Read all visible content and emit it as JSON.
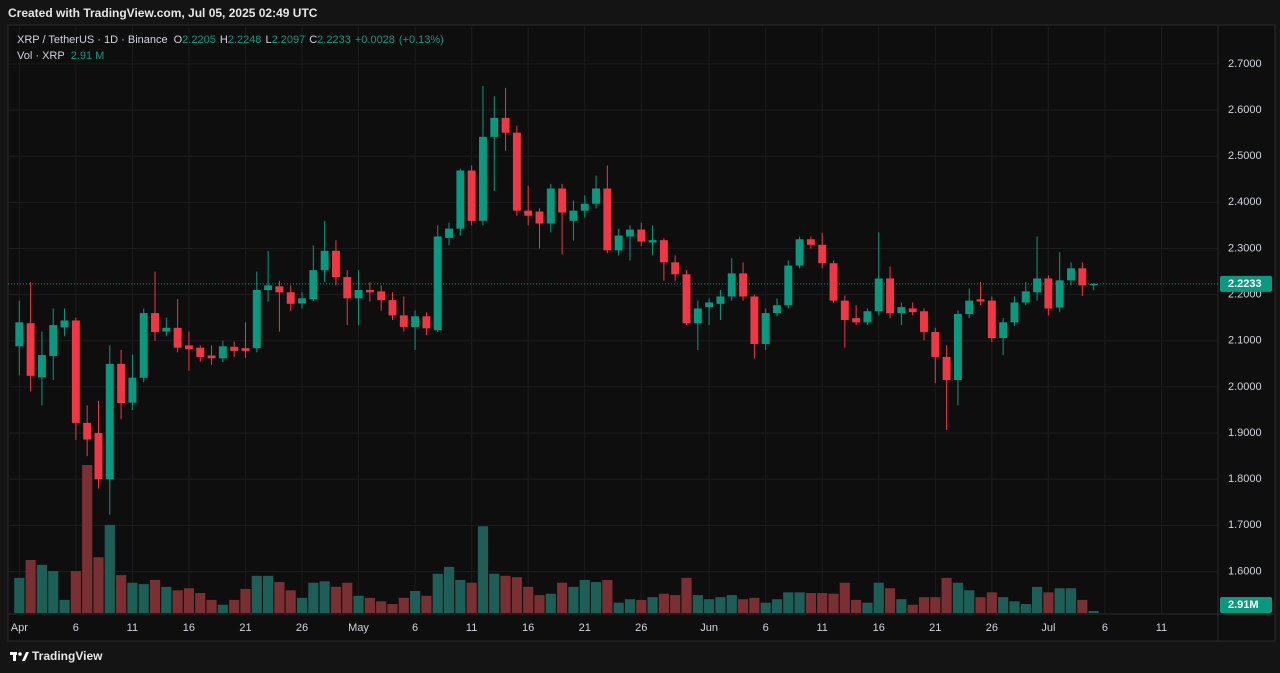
{
  "created_with": "Created with TradingView.com, Jul 05, 2025 02:49 UTC",
  "brand": "TradingView",
  "chart_data": {
    "type": "candlestick",
    "symbol": "XRP / TetherUS · 1D · Binance",
    "ohlc_prefixes": [
      "O",
      "H",
      "L",
      "C"
    ],
    "change": 0.0028,
    "change_label": "+0.0028",
    "change_pct": 0.13,
    "change_pct_label": "(+0.13%)",
    "volume_name": "Vol · XRP",
    "volume_legend_label": "2.91 M",
    "volume_tag_label": "2.91M",
    "up_color": "#089981",
    "down_color": "#f23645",
    "volume_up_color": "#1d5f57",
    "volume_down_color": "#7a2f33",
    "grid": true,
    "ylim": [
      1.51,
      2.78
    ],
    "yticks": [
      {
        "value": 1.6,
        "label": "1.6000"
      },
      {
        "value": 1.7,
        "label": "1.7000"
      },
      {
        "value": 1.8,
        "label": "1.8000"
      },
      {
        "value": 1.9,
        "label": "1.9000"
      },
      {
        "value": 2.0,
        "label": "2.0000"
      },
      {
        "value": 2.1,
        "label": "2.1000"
      },
      {
        "value": 2.2,
        "label": "2.2000"
      },
      {
        "value": 2.3,
        "label": "2.3000"
      },
      {
        "value": 2.4,
        "label": "2.4000"
      },
      {
        "value": 2.5,
        "label": "2.5000"
      },
      {
        "value": 2.6,
        "label": "2.6000"
      },
      {
        "value": 2.7,
        "label": "2.7000"
      }
    ],
    "xlim": [
      "2025-03-31",
      "2025-07-16"
    ],
    "xticks": [
      {
        "value": "2025-04-01",
        "label": "Apr"
      },
      {
        "value": "2025-04-06",
        "label": "6"
      },
      {
        "value": "2025-04-11",
        "label": "11"
      },
      {
        "value": "2025-04-16",
        "label": "16"
      },
      {
        "value": "2025-04-21",
        "label": "21"
      },
      {
        "value": "2025-04-26",
        "label": "26"
      },
      {
        "value": "2025-05-01",
        "label": "May"
      },
      {
        "value": "2025-05-06",
        "label": "6"
      },
      {
        "value": "2025-05-11",
        "label": "11"
      },
      {
        "value": "2025-05-16",
        "label": "16"
      },
      {
        "value": "2025-05-21",
        "label": "21"
      },
      {
        "value": "2025-05-26",
        "label": "26"
      },
      {
        "value": "2025-06-01",
        "label": "Jun"
      },
      {
        "value": "2025-06-06",
        "label": "6"
      },
      {
        "value": "2025-06-11",
        "label": "11"
      },
      {
        "value": "2025-06-16",
        "label": "16"
      },
      {
        "value": "2025-06-21",
        "label": "21"
      },
      {
        "value": "2025-06-26",
        "label": "26"
      },
      {
        "value": "2025-07-01",
        "label": "Jul"
      },
      {
        "value": "2025-07-06",
        "label": "6"
      },
      {
        "value": "2025-07-11",
        "label": "11"
      }
    ],
    "x": [
      "2025-04-01",
      "2025-04-02",
      "2025-04-03",
      "2025-04-04",
      "2025-04-05",
      "2025-04-06",
      "2025-04-07",
      "2025-04-08",
      "2025-04-09",
      "2025-04-10",
      "2025-04-11",
      "2025-04-12",
      "2025-04-13",
      "2025-04-14",
      "2025-04-15",
      "2025-04-16",
      "2025-04-17",
      "2025-04-18",
      "2025-04-19",
      "2025-04-20",
      "2025-04-21",
      "2025-04-22",
      "2025-04-23",
      "2025-04-24",
      "2025-04-25",
      "2025-04-26",
      "2025-04-27",
      "2025-04-28",
      "2025-04-29",
      "2025-04-30",
      "2025-05-01",
      "2025-05-02",
      "2025-05-03",
      "2025-05-04",
      "2025-05-05",
      "2025-05-06",
      "2025-05-07",
      "2025-05-08",
      "2025-05-09",
      "2025-05-10",
      "2025-05-11",
      "2025-05-12",
      "2025-05-13",
      "2025-05-14",
      "2025-05-15",
      "2025-05-16",
      "2025-05-17",
      "2025-05-18",
      "2025-05-19",
      "2025-05-20",
      "2025-05-21",
      "2025-05-22",
      "2025-05-23",
      "2025-05-24",
      "2025-05-25",
      "2025-05-26",
      "2025-05-27",
      "2025-05-28",
      "2025-05-29",
      "2025-05-30",
      "2025-05-31",
      "2025-06-01",
      "2025-06-02",
      "2025-06-03",
      "2025-06-04",
      "2025-06-05",
      "2025-06-06",
      "2025-06-07",
      "2025-06-08",
      "2025-06-09",
      "2025-06-10",
      "2025-06-11",
      "2025-06-12",
      "2025-06-13",
      "2025-06-14",
      "2025-06-15",
      "2025-06-16",
      "2025-06-17",
      "2025-06-18",
      "2025-06-19",
      "2025-06-20",
      "2025-06-21",
      "2025-06-22",
      "2025-06-23",
      "2025-06-24",
      "2025-06-25",
      "2025-06-26",
      "2025-06-27",
      "2025-06-28",
      "2025-06-29",
      "2025-06-30",
      "2025-07-01",
      "2025-07-02",
      "2025-07-03",
      "2025-07-04",
      "2025-07-05"
    ],
    "open": [
      2.088,
      2.138,
      2.021,
      2.067,
      2.129,
      2.144,
      1.922,
      1.9,
      1.8,
      2.05,
      1.966,
      2.02,
      2.16,
      2.12,
      2.128,
      2.09,
      2.085,
      2.068,
      2.062,
      2.087,
      2.084,
      2.084,
      2.21,
      2.218,
      2.205,
      2.181,
      2.19,
      2.253,
      2.295,
      2.238,
      2.192,
      2.21,
      2.207,
      2.188,
      2.155,
      2.13,
      2.153,
      2.123,
      2.323,
      2.343,
      2.469,
      2.36,
      2.542,
      2.583,
      2.551,
      2.382,
      2.38,
      2.354,
      2.43,
      2.36,
      2.382,
      2.397,
      2.43,
      2.296,
      2.326,
      2.341,
      2.313,
      2.318,
      2.27,
      2.244,
      2.138,
      2.173,
      2.18,
      2.196,
      2.246,
      2.196,
      2.093,
      2.16,
      2.177,
      2.263,
      2.32,
      2.308,
      2.268,
      2.187,
      2.149,
      2.14,
      2.164,
      2.235,
      2.16,
      2.17,
      2.164,
      2.119,
      2.065,
      2.015,
      2.158,
      2.19,
      2.187,
      2.106,
      2.14,
      2.183,
      2.205,
      2.235,
      2.172,
      2.231,
      2.257,
      2.2205
    ],
    "high": [
      2.187,
      2.227,
      2.12,
      2.17,
      2.17,
      2.15,
      1.96,
      1.97,
      2.09,
      2.08,
      2.07,
      2.17,
      2.25,
      2.15,
      2.19,
      2.12,
      2.09,
      2.09,
      2.1,
      2.098,
      2.14,
      2.25,
      2.295,
      2.23,
      2.22,
      2.206,
      2.307,
      2.36,
      2.318,
      2.253,
      2.253,
      2.227,
      2.22,
      2.205,
      2.196,
      2.166,
      2.162,
      2.35,
      2.356,
      2.473,
      2.48,
      2.652,
      2.63,
      2.648,
      2.566,
      2.436,
      2.387,
      2.44,
      2.44,
      2.404,
      2.415,
      2.458,
      2.48,
      2.343,
      2.35,
      2.356,
      2.35,
      2.322,
      2.285,
      2.253,
      2.187,
      2.192,
      2.21,
      2.279,
      2.27,
      2.2,
      2.17,
      2.192,
      2.274,
      2.326,
      2.326,
      2.334,
      2.274,
      2.198,
      2.177,
      2.17,
      2.335,
      2.261,
      2.183,
      2.183,
      2.17,
      2.128,
      2.09,
      2.166,
      2.213,
      2.227,
      2.196,
      2.149,
      2.196,
      2.227,
      2.326,
      2.242,
      2.292,
      2.27,
      2.27,
      2.2248
    ],
    "low": [
      2.025,
      1.99,
      1.96,
      2.015,
      2.11,
      1.885,
      1.85,
      1.78,
      1.723,
      1.93,
      1.95,
      2.01,
      2.1,
      2.11,
      2.075,
      2.035,
      2.055,
      2.048,
      2.054,
      2.065,
      2.063,
      2.075,
      2.185,
      2.12,
      2.165,
      2.17,
      2.186,
      2.227,
      2.22,
      2.134,
      2.134,
      2.185,
      2.165,
      2.145,
      2.12,
      2.08,
      2.112,
      2.119,
      2.307,
      2.328,
      2.35,
      2.35,
      2.425,
      2.512,
      2.371,
      2.35,
      2.3,
      2.335,
      2.287,
      2.317,
      2.367,
      2.387,
      2.29,
      2.285,
      2.274,
      2.305,
      2.285,
      2.23,
      2.23,
      2.134,
      2.08,
      2.134,
      2.145,
      2.187,
      2.187,
      2.062,
      2.08,
      2.153,
      2.17,
      2.257,
      2.3,
      2.257,
      2.183,
      2.085,
      2.134,
      2.134,
      2.155,
      2.149,
      2.134,
      2.155,
      2.101,
      2.008,
      1.907,
      1.96,
      2.149,
      2.177,
      2.097,
      2.069,
      2.132,
      2.177,
      2.187,
      2.155,
      2.162,
      2.22,
      2.197,
      2.2097
    ],
    "close": [
      2.14,
      2.024,
      2.069,
      2.134,
      2.144,
      1.922,
      1.886,
      1.8,
      2.05,
      1.965,
      2.02,
      2.16,
      2.119,
      2.128,
      2.085,
      2.082,
      2.065,
      2.062,
      2.088,
      2.078,
      2.078,
      2.21,
      2.22,
      2.205,
      2.18,
      2.192,
      2.253,
      2.295,
      2.238,
      2.192,
      2.21,
      2.205,
      2.188,
      2.155,
      2.13,
      2.153,
      2.127,
      2.326,
      2.343,
      2.469,
      2.36,
      2.542,
      2.583,
      2.551,
      2.382,
      2.371,
      2.354,
      2.43,
      2.378,
      2.382,
      2.397,
      2.43,
      2.296,
      2.328,
      2.341,
      2.315,
      2.318,
      2.27,
      2.244,
      2.138,
      2.17,
      2.183,
      2.196,
      2.246,
      2.196,
      2.093,
      2.16,
      2.177,
      2.263,
      2.32,
      2.308,
      2.268,
      2.187,
      2.145,
      2.14,
      2.164,
      2.235,
      2.16,
      2.173,
      2.162,
      2.119,
      2.065,
      2.015,
      2.158,
      2.187,
      2.185,
      2.106,
      2.14,
      2.183,
      2.207,
      2.235,
      2.17,
      2.231,
      2.257,
      2.22,
      2.2233
    ],
    "volume": [
      51,
      77,
      70,
      61,
      19,
      61,
      215,
      81,
      128,
      55,
      44,
      42,
      48,
      38,
      33,
      36,
      29,
      19,
      12,
      19,
      35,
      54,
      54,
      45,
      33,
      22,
      44,
      46,
      38,
      44,
      25,
      22,
      17,
      13,
      22,
      32,
      25,
      57,
      67,
      48,
      44,
      126,
      57,
      54,
      52,
      38,
      26,
      28,
      44,
      38,
      48,
      45,
      48,
      15,
      20,
      19,
      23,
      28,
      26,
      51,
      26,
      20,
      23,
      26,
      20,
      22,
      15,
      20,
      30,
      30,
      29,
      29,
      28,
      44,
      19,
      15,
      44,
      36,
      20,
      12,
      23,
      23,
      51,
      44,
      33,
      23,
      30,
      23,
      17,
      13,
      38,
      30,
      36,
      36,
      19,
      2.91
    ]
  }
}
